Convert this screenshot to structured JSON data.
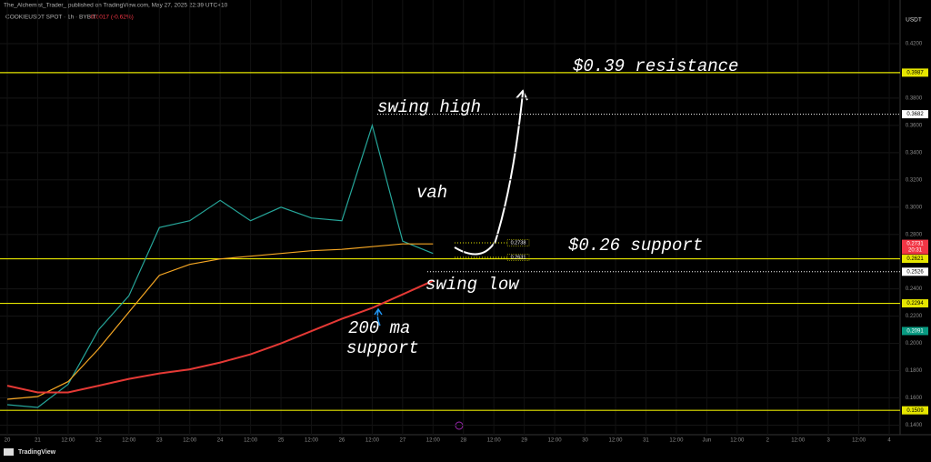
{
  "chart_data": {
    "type": "line",
    "title": "The_Alchemist_Trader_ published on TradingView.com, May 27, 2025 22:39 UTC+10",
    "subtitle": "COOKIEUSDT SPOT · 1h · BYBIT",
    "change": "-0.0017 (-0.62%)",
    "currency": "USDT",
    "brand": "TradingView",
    "categories": [
      "20",
      "21",
      "12:00",
      "22",
      "12:00",
      "23",
      "12:00",
      "24",
      "12:00",
      "25",
      "12:00",
      "26",
      "12:00",
      "27",
      "12:00",
      "28",
      "12:00",
      "29",
      "12:00",
      "30",
      "12:00",
      "31",
      "12:00",
      "Jun",
      "12:00",
      "2",
      "12:00",
      "3",
      "12:00",
      "4"
    ],
    "series": [
      {
        "color": "#26a69a",
        "values": [
          0.155,
          0.153,
          0.17,
          0.21,
          0.235,
          0.285,
          0.29,
          0.305,
          0.29,
          0.3,
          0.292,
          0.29,
          0.36,
          0.275,
          0.266,
          null,
          null,
          null,
          null,
          null,
          null,
          null,
          null,
          null,
          null,
          null,
          null,
          null,
          null,
          null
        ]
      },
      {
        "color": "#f5a623",
        "values": [
          0.159,
          0.161,
          0.172,
          0.196,
          0.223,
          0.25,
          0.258,
          0.262,
          0.264,
          0.266,
          0.268,
          0.269,
          0.271,
          0.273,
          0.273,
          null,
          null,
          null,
          null,
          null,
          null,
          null,
          null,
          null,
          null,
          null,
          null,
          null,
          null,
          null
        ]
      },
      {
        "color": "#e53935",
        "values": [
          0.169,
          0.164,
          0.164,
          0.169,
          0.174,
          0.178,
          0.181,
          0.186,
          0.192,
          0.2,
          0.209,
          0.218,
          0.226,
          0.236,
          0.246,
          null,
          null,
          null,
          null,
          null,
          null,
          null,
          null,
          null,
          null,
          null,
          null,
          null,
          null,
          null
        ]
      }
    ],
    "ylim": [
      0.133,
      0.452
    ],
    "yticks": [
      {
        "value": 0.14,
        "label": "0.1400"
      },
      {
        "value": 0.16,
        "label": "0.1600"
      },
      {
        "value": 0.18,
        "label": "0.1800"
      },
      {
        "value": 0.2,
        "label": "0.2000"
      },
      {
        "value": 0.22,
        "label": "0.2200"
      },
      {
        "value": 0.24,
        "label": "0.2400"
      },
      {
        "value": 0.28,
        "label": "0.2800"
      },
      {
        "value": 0.3,
        "label": "0.3000"
      },
      {
        "value": 0.32,
        "label": "0.3200"
      },
      {
        "value": 0.34,
        "label": "0.3400"
      },
      {
        "value": 0.36,
        "label": "0.3600"
      },
      {
        "value": 0.38,
        "label": "0.3800"
      },
      {
        "value": 0.42,
        "label": "0.4200"
      }
    ],
    "grid": true,
    "levels": [
      {
        "value": 0.3987,
        "label": "0.3987",
        "color": "#e6e600",
        "style": "solid"
      },
      {
        "value": 0.3682,
        "label": "0.3682",
        "color": "#ffffff",
        "style": "dotted"
      },
      {
        "value": 0.2621,
        "label": "0.2621",
        "color": "#e6e600",
        "style": "solid"
      },
      {
        "value": 0.2526,
        "label": "0.2526",
        "color": "#ffffff",
        "style": "dotted"
      },
      {
        "value": 0.2294,
        "label": "0.2294",
        "color": "#e6e600",
        "style": "solid"
      },
      {
        "value": 0.1509,
        "label": "0.1509",
        "color": "#e6e600",
        "style": "solid"
      }
    ],
    "price_tags": [
      {
        "value": 0.2731,
        "label": "0.2731",
        "time": "20:31",
        "color": "#f23645"
      },
      {
        "value": 0.2091,
        "label": "0.2091",
        "color": "#089981"
      }
    ],
    "small_labels": [
      {
        "value": 0.2738,
        "label": "0.2738"
      },
      {
        "value": 0.2631,
        "label": "0.2631"
      }
    ],
    "annotations": [
      "$0.39 resistance",
      "swing high",
      "vah",
      "$0.26 support",
      "swing low",
      "200 ma",
      "support"
    ]
  }
}
